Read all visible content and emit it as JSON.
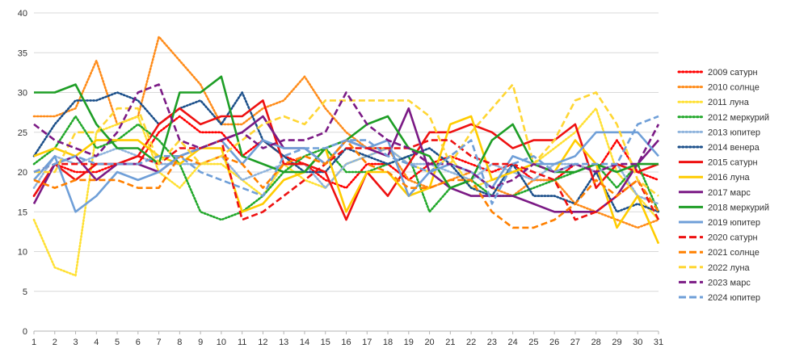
{
  "chart_data": {
    "type": "line",
    "title": "",
    "xlabel": "",
    "ylabel": "",
    "ylim": [
      0,
      40
    ],
    "yticks": [
      0,
      5,
      10,
      15,
      20,
      25,
      30,
      35,
      40
    ],
    "x": [
      1,
      2,
      3,
      4,
      5,
      6,
      7,
      8,
      9,
      10,
      11,
      12,
      13,
      14,
      15,
      16,
      17,
      18,
      19,
      20,
      21,
      22,
      23,
      24,
      25,
      26,
      27,
      28,
      29,
      30,
      31
    ],
    "grid": "horizontal",
    "legend": "right",
    "series": [
      {
        "name": "2009 сатурн",
        "color": "#ff0000",
        "dash": "dotted",
        "values": [
          17,
          21,
          20,
          20,
          21,
          21,
          25,
          27,
          25,
          25,
          22,
          24,
          22,
          21,
          19,
          18,
          21,
          21,
          19,
          21,
          22,
          21,
          20,
          21,
          19,
          19,
          21,
          20,
          24,
          20,
          19
        ]
      },
      {
        "name": "2010 солнце",
        "color": "#ff8c1a",
        "dash": "dotted",
        "values": [
          27,
          27,
          28,
          34,
          26,
          27,
          37,
          34,
          31,
          26,
          26,
          28,
          29,
          32,
          28,
          25,
          23,
          23,
          19,
          18,
          19,
          20,
          18,
          17,
          19,
          19,
          16,
          15,
          14,
          13,
          14
        ]
      },
      {
        "name": "2011 луна",
        "color": "#ffe033",
        "dash": "dotted",
        "values": [
          14,
          8,
          7,
          25,
          26,
          27,
          20,
          18,
          21,
          21,
          19,
          17,
          21,
          19,
          18,
          21,
          22,
          23,
          21,
          20,
          22,
          18,
          19,
          20,
          21,
          23,
          25,
          28,
          20,
          17,
          14
        ]
      },
      {
        "name": "2012 меркурий",
        "color": "#22a82b",
        "dash": "dotted",
        "values": [
          21,
          23,
          27,
          23,
          24,
          26,
          24,
          21,
          15,
          14,
          15,
          17,
          20,
          22,
          23,
          20,
          20,
          21,
          22,
          15,
          18,
          19,
          17,
          17,
          18,
          19,
          20,
          21,
          18,
          21,
          15
        ]
      },
      {
        "name": "2013 юпитер",
        "color": "#8fb4dd",
        "dash": "dotted",
        "values": [
          18,
          22,
          21,
          22,
          23,
          22,
          21,
          21,
          21,
          22,
          19,
          20,
          21,
          21,
          18,
          21,
          22,
          23,
          21,
          21,
          20,
          19,
          21,
          20,
          19,
          21,
          21,
          20,
          21,
          17,
          16
        ]
      },
      {
        "name": "2014 венера",
        "color": "#1b4f8a",
        "dash": "dotted",
        "values": [
          22,
          26,
          29,
          29,
          30,
          29,
          26,
          28,
          29,
          26,
          30,
          24,
          22,
          20,
          20,
          23,
          22,
          21,
          22,
          23,
          21,
          18,
          17,
          21,
          17,
          17,
          16,
          20,
          15,
          16,
          15
        ]
      },
      {
        "name": "2015 сатурн",
        "color": "#ee1111",
        "dash": "solid",
        "values": [
          17,
          21,
          19,
          21,
          21,
          22,
          26,
          28,
          26,
          27,
          27,
          29,
          21,
          21,
          20,
          14,
          20,
          17,
          21,
          25,
          25,
          26,
          25,
          23,
          24,
          24,
          26,
          18,
          21,
          20,
          21
        ]
      },
      {
        "name": "2016 луна",
        "color": "#ffcc00",
        "dash": "solid",
        "values": [
          22,
          23,
          22,
          24,
          24,
          24,
          22,
          21,
          23,
          23,
          15,
          16,
          19,
          20,
          23,
          15,
          20,
          20,
          17,
          18,
          26,
          27,
          19,
          20,
          21,
          20,
          24,
          21,
          13,
          17,
          11
        ]
      },
      {
        "name": "2017 марс",
        "color": "#7b1a85",
        "dash": "solid",
        "values": [
          16,
          21,
          22,
          19,
          21,
          21,
          20,
          22,
          23,
          24,
          25,
          27,
          23,
          23,
          21,
          24,
          23,
          22,
          28,
          20,
          18,
          17,
          17,
          17,
          16,
          15,
          15,
          15,
          17,
          21,
          24
        ]
      },
      {
        "name": "2018 меркурий",
        "color": "#1e9e26",
        "dash": "solid",
        "values": [
          30,
          30,
          31,
          26,
          23,
          23,
          21,
          30,
          30,
          32,
          22,
          21,
          20,
          20,
          23,
          24,
          26,
          27,
          23,
          22,
          18,
          19,
          24,
          26,
          21,
          20,
          20,
          21,
          20,
          21,
          21
        ]
      },
      {
        "name": "2019 юпитер",
        "color": "#6f9fd8",
        "dash": "solid",
        "values": [
          19,
          22,
          15,
          17,
          20,
          19,
          20,
          22,
          23,
          24,
          21,
          24,
          23,
          23,
          21,
          24,
          23,
          24,
          17,
          20,
          21,
          20,
          18,
          22,
          21,
          21,
          22,
          25,
          25,
          25,
          22
        ]
      },
      {
        "name": "2020 сатурн",
        "color": "#ee1111",
        "dash": "dashed",
        "values": [
          20,
          21,
          21,
          21,
          21,
          22,
          21,
          23,
          23,
          24,
          14,
          15,
          17,
          19,
          21,
          23,
          23,
          23,
          23,
          24,
          24,
          22,
          21,
          21,
          20,
          19,
          14,
          15,
          17,
          19,
          14
        ]
      },
      {
        "name": "2021 солнце",
        "color": "#ff8000",
        "dash": "dashed",
        "values": [
          19,
          18,
          19,
          19,
          19,
          18,
          18,
          22,
          21,
          22,
          21,
          18,
          21,
          22,
          21,
          24,
          21,
          20,
          18,
          18,
          19,
          19,
          15,
          13,
          13,
          14,
          16,
          19,
          17,
          19,
          15
        ]
      },
      {
        "name": "2022 луна",
        "color": "#ffd633",
        "dash": "dashed",
        "values": [
          20,
          20,
          25,
          25,
          28,
          28,
          21,
          24,
          21,
          22,
          24,
          26,
          27,
          26,
          29,
          29,
          29,
          29,
          29,
          27,
          21,
          25,
          28,
          31,
          21,
          24,
          29,
          30,
          26,
          19,
          17
        ]
      },
      {
        "name": "2023 марс",
        "color": "#7b1a85",
        "dash": "dashed",
        "values": [
          26,
          24,
          23,
          22,
          25,
          30,
          31,
          24,
          23,
          24,
          25,
          23,
          24,
          24,
          25,
          30,
          26,
          24,
          23,
          21,
          21,
          20,
          18,
          19,
          21,
          20,
          21,
          20,
          21,
          21,
          26
        ]
      },
      {
        "name": "2024 юпитер",
        "color": "#6f9fd8",
        "dash": "dashed",
        "values": [
          20,
          21,
          22,
          21,
          21,
          21,
          22,
          22,
          20,
          19,
          18,
          17,
          22,
          23,
          23,
          24,
          24,
          22,
          21,
          20,
          22,
          24,
          16,
          21,
          22,
          20,
          21,
          21,
          21,
          26,
          27
        ]
      }
    ]
  }
}
